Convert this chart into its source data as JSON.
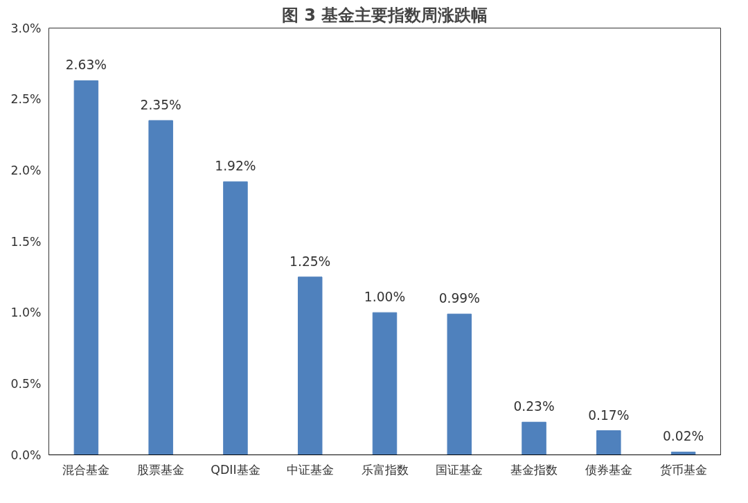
{
  "chart_data": {
    "type": "bar",
    "title": "图 3 基金主要指数周涨跌幅",
    "categories": [
      "混合基金",
      "股票基金",
      "QDII基金",
      "中证基金",
      "乐富指数",
      "国证基金",
      "基金指数",
      "债券基金",
      "货币基金"
    ],
    "values": [
      2.63,
      2.35,
      1.92,
      1.25,
      1.0,
      0.99,
      0.23,
      0.17,
      0.02
    ],
    "value_labels": [
      "2.63%",
      "2.35%",
      "1.92%",
      "1.25%",
      "1.00%",
      "0.99%",
      "0.23%",
      "0.17%",
      "0.02%"
    ],
    "color": "#4f81bd",
    "ylim": [
      0,
      3.0
    ],
    "yticks": [
      {
        "value": 0,
        "label": "0.0%"
      },
      {
        "value": 0.5,
        "label": "0.5%"
      },
      {
        "value": 1.0,
        "label": "1.0%"
      },
      {
        "value": 1.5,
        "label": "1.5%"
      },
      {
        "value": 2.0,
        "label": "2.0%"
      },
      {
        "value": 2.5,
        "label": "2.5%"
      },
      {
        "value": 3.0,
        "label": "3.0%"
      }
    ],
    "grid": false
  }
}
